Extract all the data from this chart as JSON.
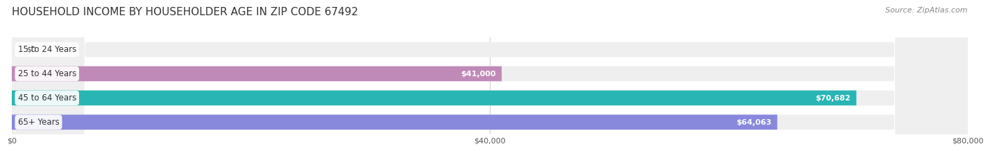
{
  "title": "HOUSEHOLD INCOME BY HOUSEHOLDER AGE IN ZIP CODE 67492",
  "source": "Source: ZipAtlas.com",
  "categories": [
    "15 to 24 Years",
    "25 to 44 Years",
    "45 to 64 Years",
    "65+ Years"
  ],
  "values": [
    0,
    41000,
    70682,
    64063
  ],
  "value_labels": [
    "$0",
    "$41,000",
    "$70,682",
    "$64,063"
  ],
  "bar_colors": [
    "#a8b8e8",
    "#c08ab8",
    "#2ab5b5",
    "#8888dd"
  ],
  "bar_bg_color": "#efefef",
  "label_bg_colors": [
    "#a8b8e8",
    "#c08ab8",
    "#2ab5b5",
    "#8888dd"
  ],
  "xlim": [
    0,
    80000
  ],
  "xticks": [
    0,
    40000,
    80000
  ],
  "xtick_labels": [
    "$0",
    "$40,000",
    "$80,000"
  ],
  "background_color": "#ffffff",
  "title_fontsize": 11,
  "source_fontsize": 8,
  "bar_height": 0.62,
  "bar_gap": 0.15
}
